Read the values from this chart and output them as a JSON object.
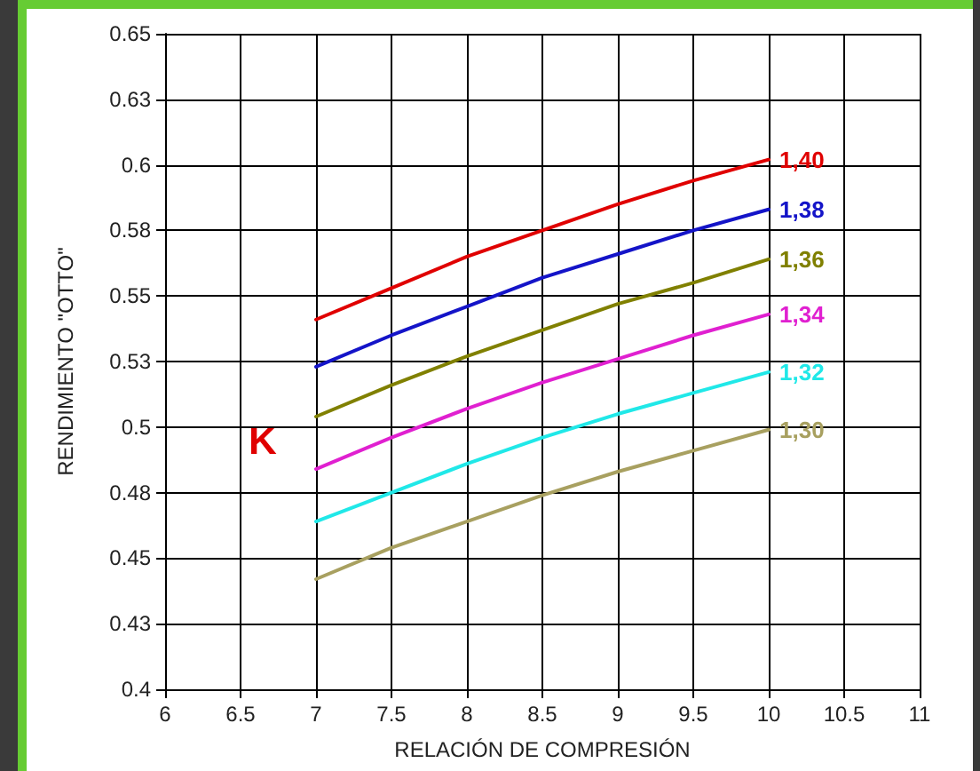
{
  "chart_data": {
    "type": "line",
    "xlabel": "RELACIÓN DE COMPRESIÓN",
    "ylabel": "RENDIMIENTO \"OTTO\"",
    "annotations": [
      "K"
    ],
    "x": [
      7,
      7.5,
      8,
      8.5,
      9,
      9.5,
      10
    ],
    "series": [
      {
        "name": "1,40",
        "color": "#e00000",
        "values": [
          0.541,
          0.553,
          0.565,
          0.575,
          0.585,
          0.594,
          0.602
        ]
      },
      {
        "name": "1,38",
        "color": "#1414c8",
        "values": [
          0.523,
          0.535,
          0.546,
          0.557,
          0.566,
          0.575,
          0.583
        ]
      },
      {
        "name": "1,36",
        "color": "#808000",
        "values": [
          0.504,
          0.516,
          0.527,
          0.537,
          0.547,
          0.555,
          0.564
        ]
      },
      {
        "name": "1,34",
        "color": "#e020d0",
        "values": [
          0.484,
          0.496,
          0.507,
          0.517,
          0.526,
          0.535,
          0.543
        ]
      },
      {
        "name": "1,32",
        "color": "#20e8e8",
        "values": [
          0.464,
          0.475,
          0.486,
          0.496,
          0.505,
          0.513,
          0.521
        ]
      },
      {
        "name": "1,30",
        "color": "#a8a060",
        "values": [
          0.442,
          0.454,
          0.464,
          0.474,
          0.483,
          0.491,
          0.499
        ]
      }
    ],
    "xlim": [
      6,
      11
    ],
    "xticks": [
      6,
      6.5,
      7,
      7.5,
      8,
      8.5,
      9,
      9.5,
      10,
      10.5,
      11
    ],
    "ylim": [
      0.4,
      0.65
    ],
    "yticks": [
      0.4,
      {
        "value": 0.425,
        "label": "0.43"
      },
      0.45,
      {
        "value": 0.475,
        "label": "0.48"
      },
      0.5,
      {
        "value": 0.525,
        "label": "0.53"
      },
      0.55,
      {
        "value": 0.575,
        "label": "0.58"
      },
      0.6,
      {
        "value": 0.625,
        "label": "0.63"
      },
      0.65
    ],
    "grid": true,
    "legend": false,
    "marker": "none",
    "line_style": "solid"
  }
}
